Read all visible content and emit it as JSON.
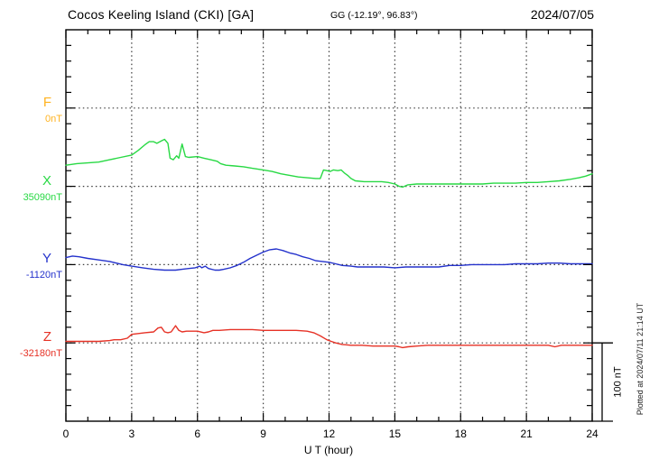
{
  "header": {
    "station_title": "Cocos Keeling Island (CKI)  [GA]",
    "coords": "GG (-12.19°,  96.83°)",
    "date": "2024/07/05"
  },
  "axes": {
    "x_label": "U T (hour)",
    "x_min": 0,
    "x_max": 24,
    "x_major_step": 3,
    "x_minor_step": 1,
    "x_ticks": [
      "0",
      "3",
      "6",
      "9",
      "12",
      "15",
      "18",
      "21",
      "24"
    ],
    "y_minor_nT": 20,
    "y_major_nT": 100,
    "y_span_nT": 500,
    "grid": "dotted verticals at 3h majors, dotted horizontal baselines per component"
  },
  "scale_bar": {
    "label": "100 nT",
    "value_nT": 100
  },
  "plotted_at": "Plotted at 2024/07/11 21:14 UT",
  "chart_data": {
    "type": "line",
    "title": "Cocos Keeling Island (CKI)  [GA]",
    "subtitle": "GG (-12.19°,  96.83°)",
    "date": "2024/07/05",
    "xlabel": "U T (hour)",
    "x_unit": "hour UT",
    "y_unit": "nT offset from component baseline",
    "xlim": [
      0,
      24
    ],
    "legend_position": "left margin, one baseline per component",
    "series": [
      {
        "name": "F",
        "label": "F",
        "baseline_label": "0nT",
        "baseline_nT": 0,
        "color": "#ffb320",
        "points": []
      },
      {
        "name": "X",
        "label": "X",
        "baseline_label": "35090nT",
        "baseline_nT": 35090,
        "color": "#28d944",
        "points": [
          [
            0,
            27
          ],
          [
            0.5,
            29
          ],
          [
            1,
            30
          ],
          [
            1.5,
            31
          ],
          [
            2,
            34
          ],
          [
            2.5,
            37
          ],
          [
            3,
            40
          ],
          [
            3.3,
            46
          ],
          [
            3.6,
            53
          ],
          [
            3.8,
            57
          ],
          [
            4,
            57
          ],
          [
            4.15,
            55
          ],
          [
            4.35,
            58
          ],
          [
            4.5,
            60
          ],
          [
            4.65,
            55
          ],
          [
            4.75,
            36
          ],
          [
            4.9,
            34
          ],
          [
            5.05,
            39
          ],
          [
            5.15,
            36
          ],
          [
            5.3,
            54
          ],
          [
            5.45,
            38
          ],
          [
            5.6,
            37
          ],
          [
            6,
            38
          ],
          [
            6.3,
            36
          ],
          [
            6.6,
            34
          ],
          [
            6.9,
            32
          ],
          [
            7.05,
            29
          ],
          [
            7.3,
            27
          ],
          [
            7.7,
            26
          ],
          [
            8.1,
            25
          ],
          [
            8.5,
            23
          ],
          [
            9,
            21
          ],
          [
            9.4,
            19
          ],
          [
            9.8,
            16
          ],
          [
            10.2,
            14
          ],
          [
            10.6,
            12
          ],
          [
            11,
            11
          ],
          [
            11.4,
            10
          ],
          [
            11.6,
            10
          ],
          [
            11.75,
            21
          ],
          [
            11.9,
            20
          ],
          [
            12.05,
            19
          ],
          [
            12.2,
            21
          ],
          [
            12.4,
            20
          ],
          [
            12.55,
            21
          ],
          [
            12.7,
            17
          ],
          [
            12.85,
            14
          ],
          [
            13,
            10
          ],
          [
            13.2,
            7
          ],
          [
            13.6,
            6
          ],
          [
            14,
            6
          ],
          [
            14.4,
            6
          ],
          [
            14.7,
            5
          ],
          [
            15,
            3
          ],
          [
            15.2,
            0
          ],
          [
            15.35,
            -1
          ],
          [
            15.6,
            2
          ],
          [
            16,
            3
          ],
          [
            16.5,
            3
          ],
          [
            17,
            3
          ],
          [
            17.5,
            3
          ],
          [
            18,
            3
          ],
          [
            18.5,
            3
          ],
          [
            19,
            3
          ],
          [
            19.5,
            4
          ],
          [
            20,
            4
          ],
          [
            20.5,
            4
          ],
          [
            21,
            5
          ],
          [
            21.5,
            5
          ],
          [
            22,
            6
          ],
          [
            22.5,
            7
          ],
          [
            23,
            9
          ],
          [
            23.4,
            11
          ],
          [
            23.7,
            13
          ],
          [
            24,
            16
          ]
        ]
      },
      {
        "name": "Y",
        "label": "Y",
        "baseline_label": "-1120nT",
        "baseline_nT": -1120,
        "color": "#2432cc",
        "points": [
          [
            0,
            9
          ],
          [
            0.3,
            11
          ],
          [
            0.6,
            10
          ],
          [
            1,
            8
          ],
          [
            1.5,
            6
          ],
          [
            2,
            4
          ],
          [
            2.3,
            2
          ],
          [
            2.6,
            0
          ],
          [
            3,
            -2
          ],
          [
            3.5,
            -4
          ],
          [
            4,
            -6
          ],
          [
            4.5,
            -7
          ],
          [
            5,
            -7
          ],
          [
            5.3,
            -6
          ],
          [
            5.6,
            -5
          ],
          [
            5.9,
            -4
          ],
          [
            6.1,
            -2
          ],
          [
            6.2,
            -4
          ],
          [
            6.35,
            -2
          ],
          [
            6.5,
            -5
          ],
          [
            6.8,
            -7
          ],
          [
            7,
            -7
          ],
          [
            7.2,
            -6
          ],
          [
            7.5,
            -4
          ],
          [
            7.8,
            -1
          ],
          [
            8.1,
            3
          ],
          [
            8.4,
            8
          ],
          [
            8.7,
            12
          ],
          [
            9,
            16
          ],
          [
            9.3,
            19
          ],
          [
            9.6,
            20
          ],
          [
            9.9,
            18
          ],
          [
            10.2,
            15
          ],
          [
            10.5,
            13
          ],
          [
            10.8,
            10
          ],
          [
            11.1,
            8
          ],
          [
            11.4,
            5
          ],
          [
            11.7,
            4
          ],
          [
            12,
            3
          ],
          [
            12.3,
            1
          ],
          [
            12.6,
            -1
          ],
          [
            13,
            -2
          ],
          [
            13.3,
            -3
          ],
          [
            13.6,
            -3
          ],
          [
            14,
            -3
          ],
          [
            14.5,
            -3
          ],
          [
            15,
            -4
          ],
          [
            15.5,
            -3
          ],
          [
            16,
            -3
          ],
          [
            16.5,
            -3
          ],
          [
            17,
            -3
          ],
          [
            17.5,
            -1
          ],
          [
            18,
            -1
          ],
          [
            18.5,
            0
          ],
          [
            19,
            0
          ],
          [
            19.5,
            0
          ],
          [
            20,
            0
          ],
          [
            20.5,
            1
          ],
          [
            21,
            1
          ],
          [
            21.5,
            1
          ],
          [
            22,
            2
          ],
          [
            22.5,
            2
          ],
          [
            23,
            1
          ],
          [
            23.5,
            1
          ],
          [
            24,
            1
          ]
        ]
      },
      {
        "name": "Z",
        "label": "Z",
        "baseline_label": "-32180nT",
        "baseline_nT": -32180,
        "color": "#e63226",
        "points": [
          [
            0,
            2
          ],
          [
            0.5,
            2
          ],
          [
            1,
            2
          ],
          [
            1.5,
            2
          ],
          [
            2,
            3
          ],
          [
            2.2,
            4
          ],
          [
            2.5,
            4
          ],
          [
            2.8,
            6
          ],
          [
            3,
            11
          ],
          [
            3.3,
            12
          ],
          [
            3.6,
            13
          ],
          [
            4,
            14
          ],
          [
            4.2,
            19
          ],
          [
            4.35,
            20
          ],
          [
            4.5,
            14
          ],
          [
            4.65,
            13
          ],
          [
            4.8,
            14
          ],
          [
            5,
            22
          ],
          [
            5.15,
            16
          ],
          [
            5.3,
            14
          ],
          [
            5.5,
            15
          ],
          [
            5.8,
            15
          ],
          [
            6,
            15
          ],
          [
            6.3,
            13
          ],
          [
            6.5,
            14
          ],
          [
            6.7,
            16
          ],
          [
            7,
            16
          ],
          [
            7.5,
            17
          ],
          [
            8,
            17
          ],
          [
            8.5,
            17
          ],
          [
            9,
            16
          ],
          [
            9.5,
            16
          ],
          [
            10,
            16
          ],
          [
            10.5,
            16
          ],
          [
            11,
            15
          ],
          [
            11.3,
            13
          ],
          [
            11.6,
            9
          ],
          [
            11.9,
            4
          ],
          [
            12.1,
            2
          ],
          [
            12.3,
            0
          ],
          [
            12.6,
            -2
          ],
          [
            13,
            -3
          ],
          [
            13.5,
            -3
          ],
          [
            14,
            -4
          ],
          [
            14.5,
            -4
          ],
          [
            15,
            -4
          ],
          [
            15.2,
            -5
          ],
          [
            15.35,
            -6
          ],
          [
            15.6,
            -5
          ],
          [
            16,
            -4
          ],
          [
            16.5,
            -3
          ],
          [
            17,
            -3
          ],
          [
            17.5,
            -3
          ],
          [
            18,
            -3
          ],
          [
            18.5,
            -3
          ],
          [
            19,
            -3
          ],
          [
            19.5,
            -3
          ],
          [
            20,
            -3
          ],
          [
            20.5,
            -3
          ],
          [
            21,
            -3
          ],
          [
            21.5,
            -3
          ],
          [
            22,
            -3
          ],
          [
            22.3,
            -5
          ],
          [
            22.6,
            -3
          ],
          [
            23,
            -3
          ],
          [
            23.5,
            -3
          ],
          [
            24,
            -3
          ]
        ]
      }
    ]
  }
}
